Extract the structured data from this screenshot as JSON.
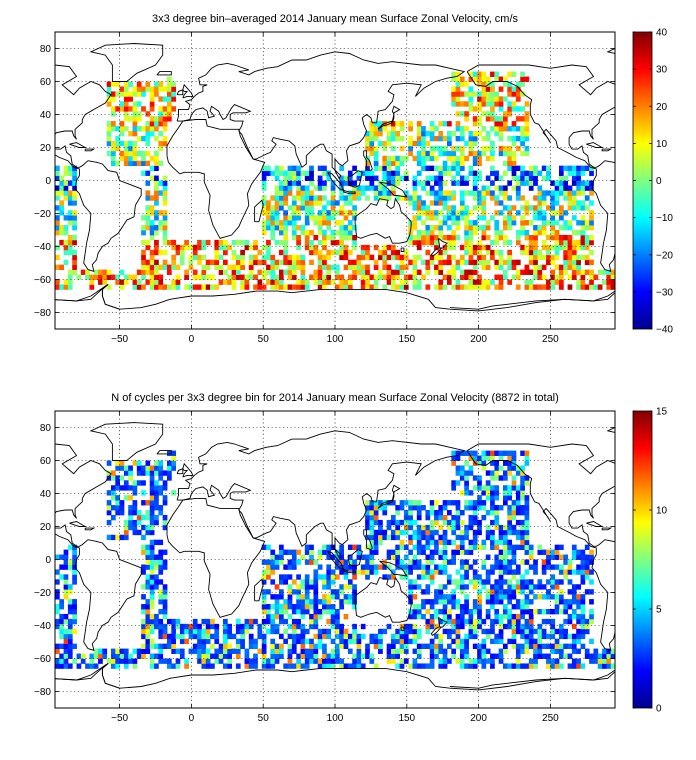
{
  "chart_data": [
    {
      "type": "heatmap",
      "title": "3x3 degree bin–averaged 2014 January mean Surface Zonal Velocity, cm/s",
      "xlim": [
        -95,
        295
      ],
      "ylim": [
        -90,
        90
      ],
      "xticks": [
        -50,
        0,
        50,
        100,
        150,
        200,
        250
      ],
      "yticks": [
        -80,
        -60,
        -40,
        -20,
        0,
        20,
        40,
        60,
        80
      ],
      "grid": true,
      "colorbar": {
        "min": -40,
        "max": 40,
        "ticks": [
          -40,
          -30,
          -20,
          -10,
          0,
          10,
          20,
          30,
          40
        ],
        "colormap": "jet"
      },
      "bin_size_deg": 3
    },
    {
      "type": "heatmap",
      "title": "N of cycles per 3x3 degree bin for 2014 January mean Surface Zonal Velocity (8872 in total)",
      "xlim": [
        -95,
        295
      ],
      "ylim": [
        -90,
        90
      ],
      "xticks": [
        -50,
        0,
        50,
        100,
        150,
        200,
        250
      ],
      "yticks": [
        -80,
        -60,
        -40,
        -20,
        0,
        20,
        40,
        60,
        80
      ],
      "grid": true,
      "colorbar": {
        "min": 0,
        "max": 15,
        "ticks": [
          0,
          5,
          10,
          15
        ],
        "colormap": "jet"
      },
      "bin_size_deg": 3
    }
  ]
}
